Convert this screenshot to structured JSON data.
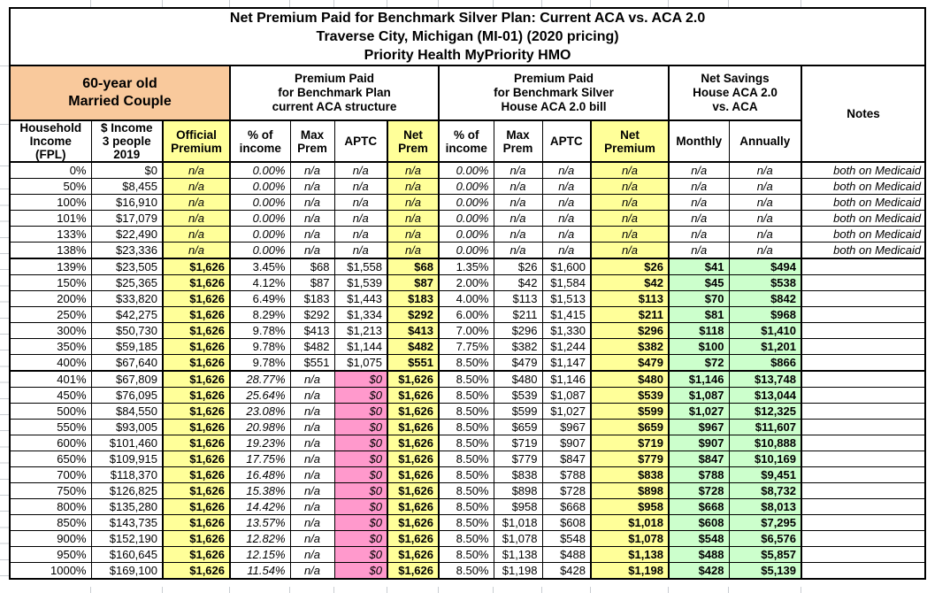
{
  "table": {
    "title": [
      "Net Premium Paid for Benchmark Silver Plan: Current ACA vs. ACA 2.0",
      "Traverse City, Michigan (MI-01) (2020 pricing)",
      "Priority Health MyPriority HMO"
    ],
    "groups": {
      "profile": "60-year old\nMarried Couple",
      "aca": "Premium Paid\nfor Benchmark Plan\ncurrent ACA structure",
      "aca2": "Premium Paid\nfor Benchmark Silver\nHouse ACA 2.0 bill",
      "savings": "Net Savings\nHouse ACA 2.0\nvs. ACA",
      "notes": "Notes"
    },
    "columns": [
      "Household\nIncome\n(FPL)",
      "$ Income\n3 people\n2019",
      "Official\nPremium",
      "% of\nincome",
      "Max\nPrem",
      "APTC",
      "Net\nPrem",
      "% of\nincome",
      "Max\nPrem",
      "APTC",
      "Net\nPremium",
      "Monthly",
      "Annually"
    ],
    "colors": {
      "yellow": "#FFFF99",
      "orange": "#F9C99C",
      "pink": "#FF99CC",
      "green": "#CCFFCC",
      "border": "#000000",
      "gridline": "#C9CDD2"
    },
    "rows": [
      {
        "fpl": "0%",
        "income": "$0",
        "official": "n/a",
        "pct1": "0.00%",
        "max1": "n/a",
        "aptc1": "n/a",
        "net1": "n/a",
        "pct2": "0.00%",
        "max2": "n/a",
        "aptc2": "n/a",
        "net2": "n/a",
        "monthly": "n/a",
        "annually": "n/a",
        "note": "both on Medicaid",
        "band": "medicaid"
      },
      {
        "fpl": "50%",
        "income": "$8,455",
        "official": "n/a",
        "pct1": "0.00%",
        "max1": "n/a",
        "aptc1": "n/a",
        "net1": "n/a",
        "pct2": "0.00%",
        "max2": "n/a",
        "aptc2": "n/a",
        "net2": "n/a",
        "monthly": "n/a",
        "annually": "n/a",
        "note": "both on Medicaid",
        "band": "medicaid"
      },
      {
        "fpl": "100%",
        "income": "$16,910",
        "official": "n/a",
        "pct1": "0.00%",
        "max1": "n/a",
        "aptc1": "n/a",
        "net1": "n/a",
        "pct2": "0.00%",
        "max2": "n/a",
        "aptc2": "n/a",
        "net2": "n/a",
        "monthly": "n/a",
        "annually": "n/a",
        "note": "both on Medicaid",
        "band": "medicaid"
      },
      {
        "fpl": "101%",
        "income": "$17,079",
        "official": "n/a",
        "pct1": "0.00%",
        "max1": "n/a",
        "aptc1": "n/a",
        "net1": "n/a",
        "pct2": "0.00%",
        "max2": "n/a",
        "aptc2": "n/a",
        "net2": "n/a",
        "monthly": "n/a",
        "annually": "n/a",
        "note": "both on Medicaid",
        "band": "medicaid"
      },
      {
        "fpl": "133%",
        "income": "$22,490",
        "official": "n/a",
        "pct1": "0.00%",
        "max1": "n/a",
        "aptc1": "n/a",
        "net1": "n/a",
        "pct2": "0.00%",
        "max2": "n/a",
        "aptc2": "n/a",
        "net2": "n/a",
        "monthly": "n/a",
        "annually": "n/a",
        "note": "both on Medicaid",
        "band": "medicaid"
      },
      {
        "fpl": "138%",
        "income": "$23,336",
        "official": "n/a",
        "pct1": "0.00%",
        "max1": "n/a",
        "aptc1": "n/a",
        "net1": "n/a",
        "pct2": "0.00%",
        "max2": "n/a",
        "aptc2": "n/a",
        "net2": "n/a",
        "monthly": "n/a",
        "annually": "n/a",
        "note": "both on Medicaid",
        "band": "medicaid",
        "sep": true
      },
      {
        "fpl": "139%",
        "income": "$23,505",
        "official": "$1,626",
        "pct1": "3.45%",
        "max1": "$68",
        "aptc1": "$1,558",
        "net1": "$68",
        "pct2": "1.35%",
        "max2": "$26",
        "aptc2": "$1,600",
        "net2": "$26",
        "monthly": "$41",
        "annually": "$494",
        "note": "",
        "band": "subsidized"
      },
      {
        "fpl": "150%",
        "income": "$25,365",
        "official": "$1,626",
        "pct1": "4.12%",
        "max1": "$87",
        "aptc1": "$1,539",
        "net1": "$87",
        "pct2": "2.00%",
        "max2": "$42",
        "aptc2": "$1,584",
        "net2": "$42",
        "monthly": "$45",
        "annually": "$538",
        "note": "",
        "band": "subsidized"
      },
      {
        "fpl": "200%",
        "income": "$33,820",
        "official": "$1,626",
        "pct1": "6.49%",
        "max1": "$183",
        "aptc1": "$1,443",
        "net1": "$183",
        "pct2": "4.00%",
        "max2": "$113",
        "aptc2": "$1,513",
        "net2": "$113",
        "monthly": "$70",
        "annually": "$842",
        "note": "",
        "band": "subsidized"
      },
      {
        "fpl": "250%",
        "income": "$42,275",
        "official": "$1,626",
        "pct1": "8.29%",
        "max1": "$292",
        "aptc1": "$1,334",
        "net1": "$292",
        "pct2": "6.00%",
        "max2": "$211",
        "aptc2": "$1,415",
        "net2": "$211",
        "monthly": "$81",
        "annually": "$968",
        "note": "",
        "band": "subsidized"
      },
      {
        "fpl": "300%",
        "income": "$50,730",
        "official": "$1,626",
        "pct1": "9.78%",
        "max1": "$413",
        "aptc1": "$1,213",
        "net1": "$413",
        "pct2": "7.00%",
        "max2": "$296",
        "aptc2": "$1,330",
        "net2": "$296",
        "monthly": "$118",
        "annually": "$1,410",
        "note": "",
        "band": "subsidized"
      },
      {
        "fpl": "350%",
        "income": "$59,185",
        "official": "$1,626",
        "pct1": "9.78%",
        "max1": "$482",
        "aptc1": "$1,144",
        "net1": "$482",
        "pct2": "7.75%",
        "max2": "$382",
        "aptc2": "$1,244",
        "net2": "$382",
        "monthly": "$100",
        "annually": "$1,201",
        "note": "",
        "band": "subsidized"
      },
      {
        "fpl": "400%",
        "income": "$67,640",
        "official": "$1,626",
        "pct1": "9.78%",
        "max1": "$551",
        "aptc1": "$1,075",
        "net1": "$551",
        "pct2": "8.50%",
        "max2": "$479",
        "aptc2": "$1,147",
        "net2": "$479",
        "monthly": "$72",
        "annually": "$866",
        "note": "",
        "band": "subsidized",
        "sep": true
      },
      {
        "fpl": "401%",
        "income": "$67,809",
        "official": "$1,626",
        "pct1": "28.77%",
        "max1": "n/a",
        "aptc1": "$0",
        "net1": "$1,626",
        "pct2": "8.50%",
        "max2": "$480",
        "aptc2": "$1,146",
        "net2": "$480",
        "monthly": "$1,146",
        "annually": "$13,748",
        "note": "",
        "band": "over400"
      },
      {
        "fpl": "450%",
        "income": "$76,095",
        "official": "$1,626",
        "pct1": "25.64%",
        "max1": "n/a",
        "aptc1": "$0",
        "net1": "$1,626",
        "pct2": "8.50%",
        "max2": "$539",
        "aptc2": "$1,087",
        "net2": "$539",
        "monthly": "$1,087",
        "annually": "$13,044",
        "note": "",
        "band": "over400"
      },
      {
        "fpl": "500%",
        "income": "$84,550",
        "official": "$1,626",
        "pct1": "23.08%",
        "max1": "n/a",
        "aptc1": "$0",
        "net1": "$1,626",
        "pct2": "8.50%",
        "max2": "$599",
        "aptc2": "$1,027",
        "net2": "$599",
        "monthly": "$1,027",
        "annually": "$12,325",
        "note": "",
        "band": "over400"
      },
      {
        "fpl": "550%",
        "income": "$93,005",
        "official": "$1,626",
        "pct1": "20.98%",
        "max1": "n/a",
        "aptc1": "$0",
        "net1": "$1,626",
        "pct2": "8.50%",
        "max2": "$659",
        "aptc2": "$967",
        "net2": "$659",
        "monthly": "$967",
        "annually": "$11,607",
        "note": "",
        "band": "over400"
      },
      {
        "fpl": "600%",
        "income": "$101,460",
        "official": "$1,626",
        "pct1": "19.23%",
        "max1": "n/a",
        "aptc1": "$0",
        "net1": "$1,626",
        "pct2": "8.50%",
        "max2": "$719",
        "aptc2": "$907",
        "net2": "$719",
        "monthly": "$907",
        "annually": "$10,888",
        "note": "",
        "band": "over400"
      },
      {
        "fpl": "650%",
        "income": "$109,915",
        "official": "$1,626",
        "pct1": "17.75%",
        "max1": "n/a",
        "aptc1": "$0",
        "net1": "$1,626",
        "pct2": "8.50%",
        "max2": "$779",
        "aptc2": "$847",
        "net2": "$779",
        "monthly": "$847",
        "annually": "$10,169",
        "note": "",
        "band": "over400"
      },
      {
        "fpl": "700%",
        "income": "$118,370",
        "official": "$1,626",
        "pct1": "16.48%",
        "max1": "n/a",
        "aptc1": "$0",
        "net1": "$1,626",
        "pct2": "8.50%",
        "max2": "$838",
        "aptc2": "$788",
        "net2": "$838",
        "monthly": "$788",
        "annually": "$9,451",
        "note": "",
        "band": "over400"
      },
      {
        "fpl": "750%",
        "income": "$126,825",
        "official": "$1,626",
        "pct1": "15.38%",
        "max1": "n/a",
        "aptc1": "$0",
        "net1": "$1,626",
        "pct2": "8.50%",
        "max2": "$898",
        "aptc2": "$728",
        "net2": "$898",
        "monthly": "$728",
        "annually": "$8,732",
        "note": "",
        "band": "over400"
      },
      {
        "fpl": "800%",
        "income": "$135,280",
        "official": "$1,626",
        "pct1": "14.42%",
        "max1": "n/a",
        "aptc1": "$0",
        "net1": "$1,626",
        "pct2": "8.50%",
        "max2": "$958",
        "aptc2": "$668",
        "net2": "$958",
        "monthly": "$668",
        "annually": "$8,013",
        "note": "",
        "band": "over400"
      },
      {
        "fpl": "850%",
        "income": "$143,735",
        "official": "$1,626",
        "pct1": "13.57%",
        "max1": "n/a",
        "aptc1": "$0",
        "net1": "$1,626",
        "pct2": "8.50%",
        "max2": "$1,018",
        "aptc2": "$608",
        "net2": "$1,018",
        "monthly": "$608",
        "annually": "$7,295",
        "note": "",
        "band": "over400"
      },
      {
        "fpl": "900%",
        "income": "$152,190",
        "official": "$1,626",
        "pct1": "12.82%",
        "max1": "n/a",
        "aptc1": "$0",
        "net1": "$1,626",
        "pct2": "8.50%",
        "max2": "$1,078",
        "aptc2": "$548",
        "net2": "$1,078",
        "monthly": "$548",
        "annually": "$6,576",
        "note": "",
        "band": "over400"
      },
      {
        "fpl": "950%",
        "income": "$160,645",
        "official": "$1,626",
        "pct1": "12.15%",
        "max1": "n/a",
        "aptc1": "$0",
        "net1": "$1,626",
        "pct2": "8.50%",
        "max2": "$1,138",
        "aptc2": "$488",
        "net2": "$1,138",
        "monthly": "$488",
        "annually": "$5,857",
        "note": "",
        "band": "over400"
      },
      {
        "fpl": "1000%",
        "income": "$169,100",
        "official": "$1,626",
        "pct1": "11.54%",
        "max1": "n/a",
        "aptc1": "$0",
        "net1": "$1,626",
        "pct2": "8.50%",
        "max2": "$1,198",
        "aptc2": "$428",
        "net2": "$1,198",
        "monthly": "$428",
        "annually": "$5,139",
        "note": "",
        "band": "over400"
      }
    ]
  }
}
